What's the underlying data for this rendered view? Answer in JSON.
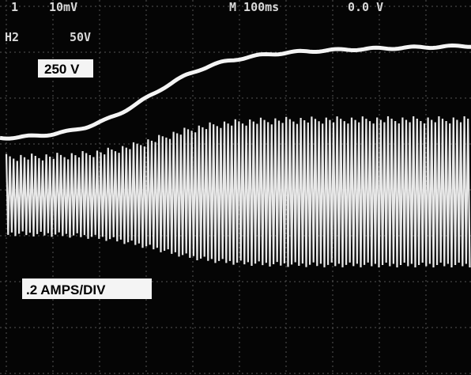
{
  "readout": {
    "ch1": "1",
    "ch1_scale": "10mV",
    "timebase": "M 100ms",
    "trigger": "0.0 V",
    "ch2": "H2",
    "ch2_scale": "50V"
  },
  "labels": {
    "voltage": "250 V",
    "current": ".2 AMPS/DIV"
  }
}
